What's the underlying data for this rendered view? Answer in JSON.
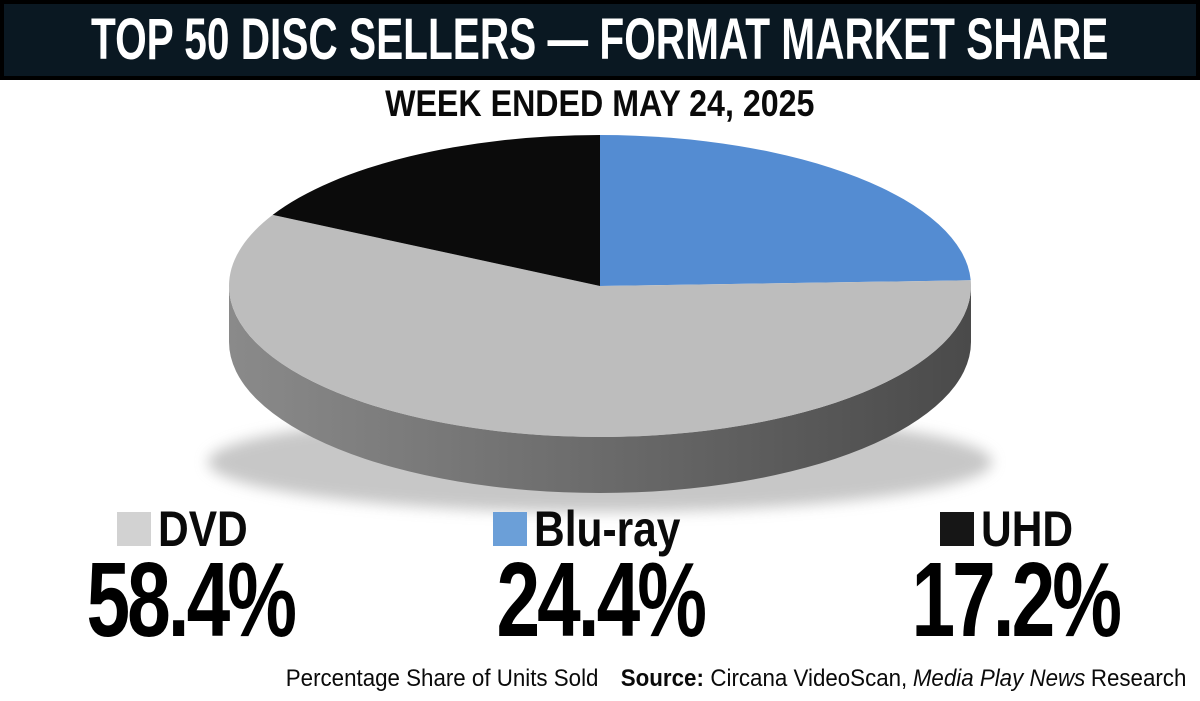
{
  "header": {
    "title": "TOP 50 DISC SELLERS — FORMAT MARKET SHARE"
  },
  "subtitle": "WEEK ENDED MAY 24, 2025",
  "chart_data": {
    "type": "pie",
    "style": "3d",
    "title": "TOP 50 DISC SELLERS — FORMAT MARKET SHARE",
    "subtitle": "WEEK ENDED MAY 24, 2025",
    "unit": "percent of units sold",
    "start_angle_deg": 0,
    "direction": "clockwise",
    "draw_order": [
      1,
      0,
      2
    ],
    "legend_position": "bottom",
    "series": [
      {
        "name": "DVD",
        "value": 58.4,
        "label": "58.4%",
        "color": "#bdbdbd",
        "legend_color": "#d2d2d2"
      },
      {
        "name": "Blu-ray",
        "value": 24.4,
        "label": "24.4%",
        "color": "#548cd2",
        "legend_color": "#6b9fd8"
      },
      {
        "name": "UHD",
        "value": 17.2,
        "label": "17.2%",
        "color": "#0b0b0b",
        "legend_color": "#161616"
      }
    ]
  },
  "footer": {
    "note": "Percentage Share of Units Sold",
    "source_label": "Source:",
    "source_text": "Circana VideoScan,",
    "source_italic": "Media Play News",
    "source_suffix": "Research"
  },
  "colors": {
    "header_bg": "#0a1822",
    "header_border": "#000000",
    "background": "#ffffff",
    "pie_side_light": "#8a8a8a",
    "pie_side_mid": "#6e6e6e",
    "pie_side_dark": "#4a4a4a",
    "text": "#0a0a0a"
  }
}
